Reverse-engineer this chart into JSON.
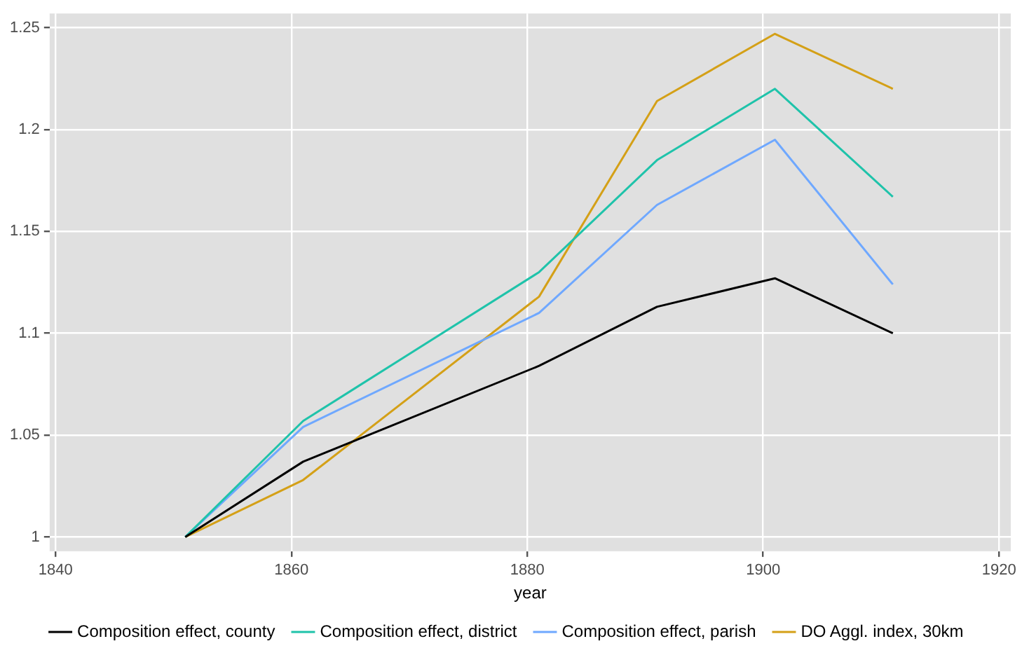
{
  "chart_data": {
    "type": "line",
    "xlabel": "year",
    "x": [
      1851,
      1861,
      1881,
      1891,
      1901,
      1911
    ],
    "series": [
      {
        "name": "Composition effect, county",
        "color": "#000000",
        "values": [
          1.0,
          1.037,
          1.084,
          1.113,
          1.127,
          1.1
        ]
      },
      {
        "name": "Composition effect, district",
        "color": "#1fc3aa",
        "values": [
          1.0,
          1.057,
          1.13,
          1.185,
          1.22,
          1.167
        ]
      },
      {
        "name": "Composition effect, parish",
        "color": "#6fa8ff",
        "values": [
          1.0,
          1.054,
          1.11,
          1.163,
          1.195,
          1.124
        ]
      },
      {
        "name": "DO Aggl. index, 30km",
        "color": "#d4a017",
        "values": [
          1.0,
          1.028,
          1.118,
          1.214,
          1.247,
          1.22
        ]
      }
    ],
    "xlim": [
      1839.5,
      1921
    ],
    "xticks": [
      1840,
      1860,
      1880,
      1900,
      1920
    ],
    "ylim": [
      0.993,
      1.257
    ],
    "yticks": [
      1,
      1.05,
      1.1,
      1.15,
      1.2,
      1.25
    ],
    "grid": true,
    "legend": "bottom",
    "marker": "none",
    "line_style": "solid"
  }
}
